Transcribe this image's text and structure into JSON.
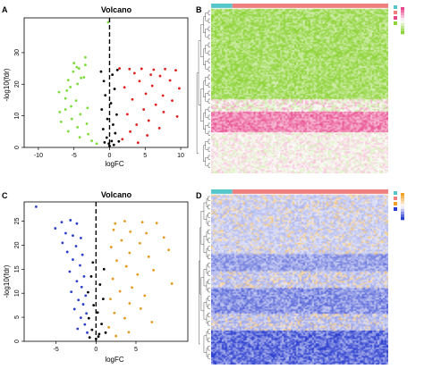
{
  "panels": {
    "a": {
      "label": "A",
      "title": "Volcano",
      "xlabel": "logFC",
      "ylabel": "-log10(fdr)"
    },
    "b": {
      "label": "B"
    },
    "c": {
      "label": "C",
      "title": "Volcano",
      "xlabel": "logFC",
      "ylabel": "-log10(fdr)"
    },
    "d": {
      "label": "D"
    }
  },
  "colors": {
    "down_a": "#7ddc3c",
    "up_a": "#e0201c",
    "down_c": "#2b3fc8",
    "up_c": "#e39a1f",
    "ns": "#000000",
    "heat_b_low": "#8fd43a",
    "heat_b_high": "#e8468c",
    "heat_d_low": "#2c3fcf",
    "heat_d_high": "#f0a32a",
    "col_bar_1": "#55c6c9",
    "col_bar_2": "#ef7f7f"
  },
  "chart_data": [
    {
      "type": "scatter",
      "panel": "A",
      "title": "Volcano",
      "xlabel": "logFC",
      "ylabel": "-log10(fdr)",
      "xlim": [
        -12,
        11
      ],
      "ylim": [
        0,
        41
      ],
      "xticks": [
        -10,
        -5,
        0,
        5,
        10
      ],
      "yticks": [
        0,
        10,
        20,
        30
      ],
      "vline": 0,
      "series": [
        {
          "group": "down",
          "color": "#7ddc3c",
          "points": [
            [
              -0.2,
              39.6
            ],
            [
              -3.4,
              28.5
            ],
            [
              -5.0,
              26.7
            ],
            [
              -3.4,
              26.1
            ],
            [
              -4.6,
              25.4
            ],
            [
              -4.3,
              25.0
            ],
            [
              -5.1,
              24.0
            ],
            [
              -4.0,
              22.0
            ],
            [
              -3.6,
              22.2
            ],
            [
              -5.8,
              21.3
            ],
            [
              -4.5,
              20.1
            ],
            [
              -5.5,
              19.1
            ],
            [
              -6.0,
              18.0
            ],
            [
              -7.1,
              17.5
            ],
            [
              -6.2,
              15.5
            ],
            [
              -4.7,
              14.8
            ],
            [
              -5.4,
              13.0
            ],
            [
              -3.1,
              12.5
            ],
            [
              -6.2,
              12.0
            ],
            [
              -7.0,
              11.2
            ],
            [
              -4.1,
              10.5
            ],
            [
              -5.3,
              9.0
            ],
            [
              -6.8,
              8.1
            ],
            [
              -3.2,
              7.5
            ],
            [
              -4.5,
              6.4
            ],
            [
              -5.8,
              5.1
            ],
            [
              -3.0,
              4.2
            ],
            [
              -4.2,
              3.2
            ],
            [
              -2.5,
              2.1
            ],
            [
              -1.8,
              1.2
            ]
          ]
        },
        {
          "group": "up",
          "color": "#e0201c",
          "points": [
            [
              1.4,
              25.0
            ],
            [
              2.8,
              24.8
            ],
            [
              4.5,
              24.9
            ],
            [
              6.2,
              24.6
            ],
            [
              7.8,
              24.8
            ],
            [
              9.3,
              24.4
            ],
            [
              3.5,
              23.5
            ],
            [
              5.8,
              23.0
            ],
            [
              7.1,
              22.6
            ],
            [
              4.2,
              21.0
            ],
            [
              8.5,
              21.2
            ],
            [
              6.0,
              19.5
            ],
            [
              2.1,
              19.0
            ],
            [
              9.8,
              18.7
            ],
            [
              5.1,
              17.0
            ],
            [
              7.5,
              16.4
            ],
            [
              3.2,
              15.2
            ],
            [
              8.8,
              14.8
            ],
            [
              6.5,
              13.5
            ],
            [
              4.8,
              12.0
            ],
            [
              7.6,
              11.2
            ],
            [
              2.5,
              10.5
            ],
            [
              9.5,
              9.8
            ],
            [
              5.5,
              8.5
            ],
            [
              3.8,
              7.2
            ],
            [
              7.0,
              6.1
            ],
            [
              2.9,
              5.0
            ],
            [
              5.3,
              3.8
            ],
            [
              1.8,
              2.6
            ],
            [
              4.0,
              1.5
            ]
          ]
        },
        {
          "group": "ns",
          "color": "#000000",
          "points": [
            [
              0.0,
              0.5
            ],
            [
              0.3,
              2.0
            ],
            [
              -0.4,
              3.1
            ],
            [
              0.8,
              4.5
            ],
            [
              -0.9,
              5.8
            ],
            [
              0.5,
              7.2
            ],
            [
              -0.3,
              9.0
            ],
            [
              1.0,
              10.4
            ],
            [
              -1.1,
              12.0
            ],
            [
              0.2,
              14.0
            ],
            [
              -0.6,
              16.5
            ],
            [
              0.7,
              18.5
            ],
            [
              -0.8,
              21.0
            ],
            [
              0.4,
              23.0
            ],
            [
              -1.2,
              24.0
            ],
            [
              1.1,
              24.5
            ],
            [
              -0.1,
              1.2
            ],
            [
              0.6,
              0.8
            ],
            [
              -0.7,
              1.6
            ],
            [
              1.3,
              1.9
            ]
          ]
        }
      ]
    },
    {
      "type": "heatmap",
      "panel": "B",
      "bands": [
        {
          "from": 0.0,
          "to": 0.55,
          "tone": "low",
          "intensity": 0.9
        },
        {
          "from": 0.55,
          "to": 0.62,
          "tone": "mixed",
          "intensity": 0.55
        },
        {
          "from": 0.62,
          "to": 0.75,
          "tone": "high",
          "intensity": 0.75
        },
        {
          "from": 0.75,
          "to": 1.0,
          "tone": "mixed",
          "intensity": 0.35
        }
      ]
    },
    {
      "type": "scatter",
      "panel": "C",
      "title": "Volcano",
      "xlabel": "logFC",
      "ylabel": "-log10(fdr)",
      "xlim": [
        -9,
        11.5
      ],
      "ylim": [
        0,
        29
      ],
      "xticks": [
        -5,
        0,
        5
      ],
      "yticks": [
        0,
        5,
        10,
        15,
        20,
        25
      ],
      "vline": 0,
      "series": [
        {
          "group": "down",
          "color": "#2b3fc8",
          "points": [
            [
              -7.5,
              28.0
            ],
            [
              -4.3,
              24.8
            ],
            [
              -3.2,
              25.2
            ],
            [
              -2.4,
              24.5
            ],
            [
              -5.1,
              23.5
            ],
            [
              -3.8,
              22.5
            ],
            [
              -2.9,
              22.0
            ],
            [
              -1.9,
              21.5
            ],
            [
              -4.2,
              20.5
            ],
            [
              -2.5,
              19.8
            ],
            [
              -3.6,
              18.6
            ],
            [
              -1.7,
              18.0
            ],
            [
              -2.9,
              17.0
            ],
            [
              -2.0,
              15.8
            ],
            [
              -3.3,
              14.5
            ],
            [
              -1.5,
              13.5
            ],
            [
              -2.4,
              12.5
            ],
            [
              -1.8,
              11.3
            ],
            [
              -3.1,
              10.3
            ],
            [
              -1.3,
              9.5
            ],
            [
              -2.2,
              8.6
            ],
            [
              -1.6,
              7.7
            ],
            [
              -2.7,
              6.7
            ],
            [
              -1.2,
              5.8
            ],
            [
              -1.9,
              4.9
            ],
            [
              -1.4,
              3.5
            ],
            [
              -2.3,
              2.6
            ],
            [
              -1.1,
              1.8
            ]
          ]
        },
        {
          "group": "up",
          "color": "#e39a1f",
          "points": [
            [
              2.4,
              24.5
            ],
            [
              3.6,
              25.0
            ],
            [
              5.8,
              24.8
            ],
            [
              7.6,
              24.6
            ],
            [
              2.2,
              23.2
            ],
            [
              4.3,
              22.8
            ],
            [
              6.3,
              22.5
            ],
            [
              8.5,
              21.6
            ],
            [
              3.2,
              21.0
            ],
            [
              5.5,
              20.4
            ],
            [
              1.9,
              19.6
            ],
            [
              9.1,
              19.0
            ],
            [
              4.2,
              18.4
            ],
            [
              6.6,
              17.6
            ],
            [
              2.6,
              16.8
            ],
            [
              3.8,
              15.6
            ],
            [
              7.2,
              14.8
            ],
            [
              5.2,
              13.9
            ],
            [
              2.1,
              13.0
            ],
            [
              9.5,
              12.0
            ],
            [
              4.5,
              11.2
            ],
            [
              3.0,
              10.4
            ],
            [
              6.1,
              9.5
            ],
            [
              1.8,
              8.8
            ],
            [
              4.2,
              7.9
            ],
            [
              5.6,
              6.8
            ],
            [
              2.3,
              5.9
            ],
            [
              3.6,
              4.8
            ],
            [
              7.0,
              4.0
            ],
            [
              1.6,
              2.9
            ],
            [
              4.1,
              1.9
            ],
            [
              2.5,
              1.1
            ]
          ]
        },
        {
          "group": "ns",
          "color": "#000000",
          "points": [
            [
              0.0,
              0.5
            ],
            [
              0.4,
              1.5
            ],
            [
              -0.5,
              2.4
            ],
            [
              0.7,
              3.6
            ],
            [
              -0.9,
              4.8
            ],
            [
              0.2,
              6.0
            ],
            [
              -0.3,
              7.5
            ],
            [
              0.9,
              8.8
            ],
            [
              -1.0,
              10.2
            ],
            [
              0.5,
              11.8
            ],
            [
              -0.6,
              13.5
            ],
            [
              1.0,
              15.0
            ],
            [
              -0.4,
              16.4
            ],
            [
              0.3,
              1.0
            ],
            [
              -0.8,
              0.8
            ],
            [
              1.2,
              1.8
            ]
          ]
        }
      ]
    },
    {
      "type": "heatmap",
      "panel": "D",
      "bands": [
        {
          "from": 0.0,
          "to": 0.35,
          "tone": "mixed_blue",
          "intensity": 0.3
        },
        {
          "from": 0.35,
          "to": 0.45,
          "tone": "low",
          "intensity": 0.55
        },
        {
          "from": 0.45,
          "to": 0.55,
          "tone": "mixed_blue",
          "intensity": 0.35
        },
        {
          "from": 0.55,
          "to": 0.7,
          "tone": "low",
          "intensity": 0.65
        },
        {
          "from": 0.7,
          "to": 0.8,
          "tone": "mixed_blue",
          "intensity": 0.4
        },
        {
          "from": 0.8,
          "to": 1.0,
          "tone": "low",
          "intensity": 0.85
        }
      ]
    }
  ]
}
